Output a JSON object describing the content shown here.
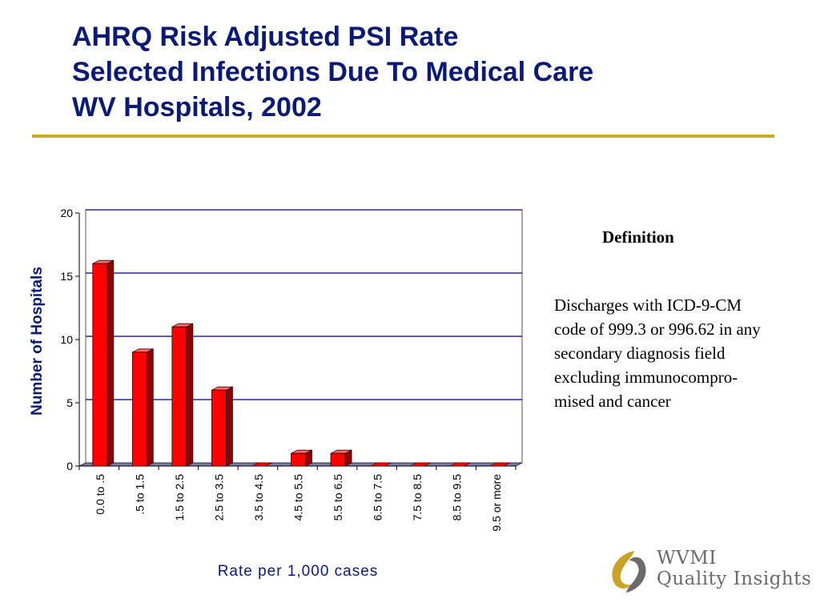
{
  "title_lines": [
    "AHRQ Risk Adjusted PSI Rate",
    "Selected Infections Due To Medical Care",
    "WV Hospitals, 2002"
  ],
  "definition": {
    "heading": "Definition",
    "lines": [
      "Discharges with ICD-9-CM",
      "code of 999.3 or 996.62 in any",
      "secondary diagnosis field",
      "excluding immunocompro-",
      "mised and cancer"
    ]
  },
  "logo": {
    "line1": "WVMI",
    "line2": "Quality Insights"
  },
  "colors": {
    "title": "#0a1a75",
    "rule": "#c9b020",
    "bar": "#ff0000",
    "grid": "#000080"
  },
  "chart_data": {
    "type": "bar",
    "categories": [
      "0.0 to .5",
      ".5 to 1.5",
      "1.5 to 2.5",
      "2.5 to 3.5",
      "3.5 to 4.5",
      "4.5 to 5.5",
      "5.5 to 6.5",
      "6.5 to 7.5",
      "7.5 to 8.5",
      "8.5 to 9.5",
      "9.5 or more"
    ],
    "values": [
      16,
      9,
      11,
      6,
      0,
      1,
      1,
      0,
      0,
      0,
      0
    ],
    "xlabel": "Rate per 1,000 cases",
    "ylabel": "Number of Hospitals",
    "ylim": [
      0,
      20
    ],
    "yticks": [
      0,
      5,
      10,
      15,
      20
    ],
    "grid": true,
    "legend": "none"
  }
}
